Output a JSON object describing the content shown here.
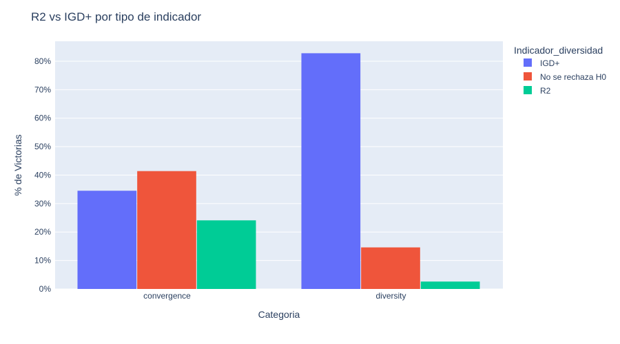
{
  "chart_data": {
    "type": "bar",
    "title": "R2 vs IGD+ por tipo de indicador",
    "xlabel": "Categoria",
    "ylabel": "% de Victorias",
    "categories": [
      "convergence",
      "diversity"
    ],
    "series": [
      {
        "name": "IGD+",
        "values": [
          34.5,
          82.8
        ],
        "color": "#636efa"
      },
      {
        "name": "No se rechaza H0",
        "values": [
          41.4,
          14.6
        ],
        "color": "#ef553b"
      },
      {
        "name": "R2",
        "values": [
          24.1,
          2.6
        ],
        "color": "#00cc96"
      }
    ],
    "ylim": [
      0,
      87
    ],
    "yticks": [
      0,
      10,
      20,
      30,
      40,
      50,
      60,
      70,
      80
    ],
    "ytick_labels": [
      "0%",
      "10%",
      "20%",
      "30%",
      "40%",
      "50%",
      "60%",
      "70%",
      "80%"
    ],
    "legend_title": "Indicador_diversidad",
    "legend_position": "right",
    "grid": true,
    "plot_bg": "#e5ecf6"
  }
}
